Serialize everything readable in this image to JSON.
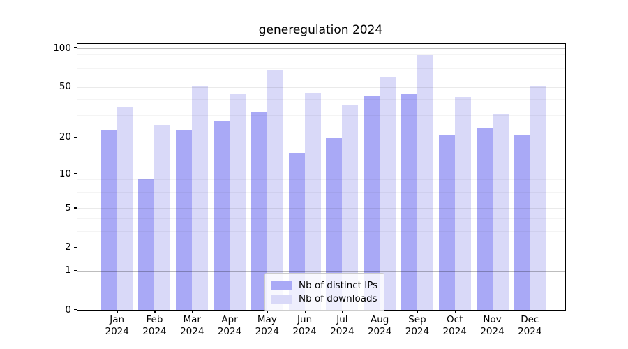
{
  "title": "generegulation 2024",
  "chart_data": {
    "type": "bar",
    "title": "generegulation 2024",
    "categories": [
      "Jan",
      "Feb",
      "Mar",
      "Apr",
      "May",
      "Jun",
      "Jul",
      "Aug",
      "Sep",
      "Oct",
      "Nov",
      "Dec"
    ],
    "x_tick_year_line": "2024",
    "series": [
      {
        "name": "Nb of distinct IPs",
        "color": "#a9a9f6",
        "values": [
          23,
          9,
          23,
          27,
          32,
          15,
          20,
          43,
          44,
          21,
          24,
          21
        ]
      },
      {
        "name": "Nb of downloads",
        "color": "#d9d9f8",
        "values": [
          35,
          25,
          51,
          44,
          67,
          45,
          36,
          60,
          88,
          42,
          31,
          51
        ]
      }
    ],
    "yscale": "log1p",
    "ylim": [
      0,
      108
    ],
    "ytick_values": [
      100,
      50,
      20,
      10,
      5,
      2,
      1,
      0
    ],
    "gridlines": {
      "power10": [
        1,
        10,
        100
      ],
      "labeled": [
        2,
        5,
        20,
        50
      ],
      "minor": [
        3,
        4,
        6,
        7,
        8,
        9,
        30,
        40,
        60,
        70,
        80,
        90
      ],
      "power10_color": "#bdbdbd",
      "labeled_color": "#eaeaea",
      "minor_color": "#f4f4f4"
    },
    "grid": true,
    "legend_position": "lower center"
  }
}
